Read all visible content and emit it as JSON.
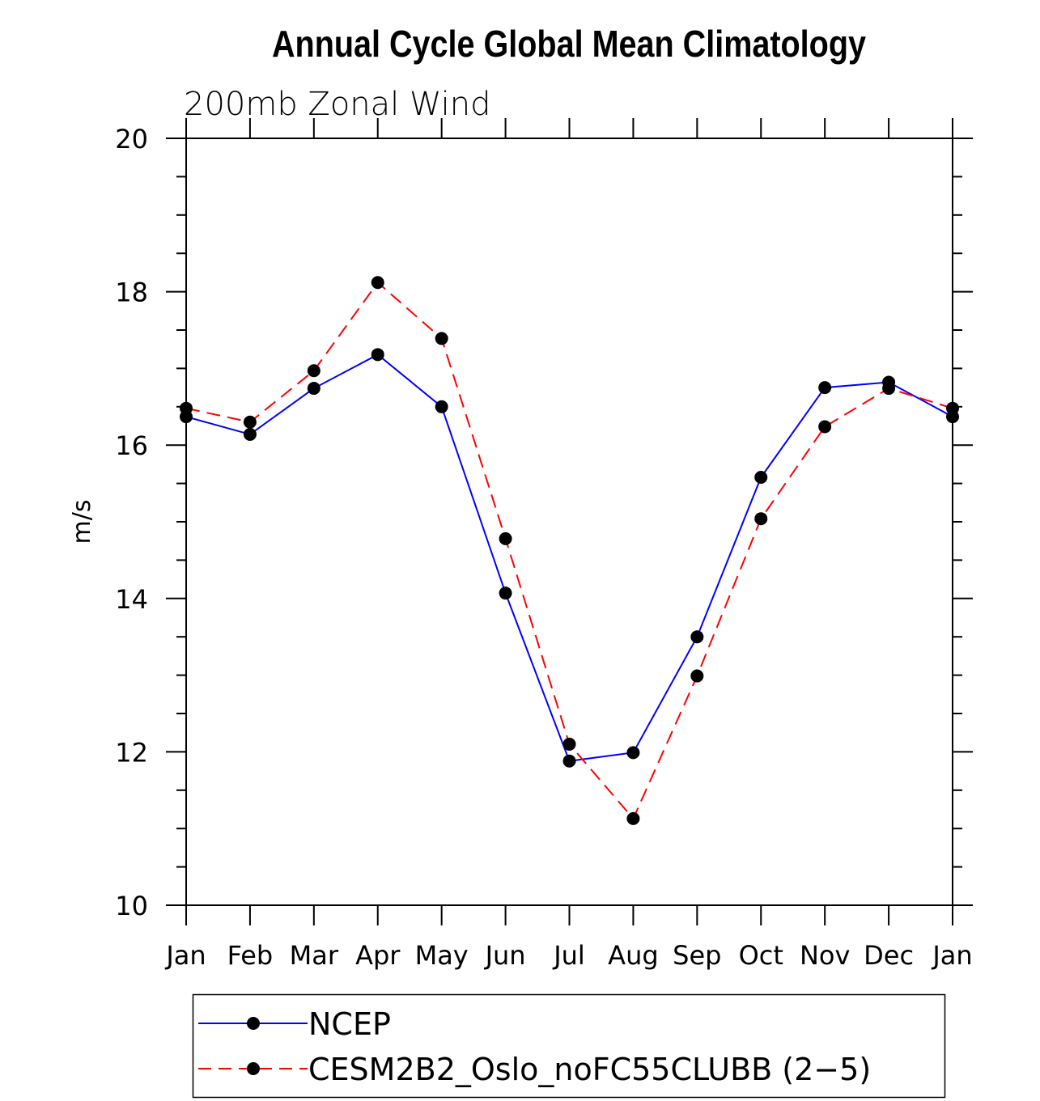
{
  "chart_data": {
    "type": "line",
    "title": "Annual Cycle Global Mean Climatology",
    "subtitle": "200mb Zonal Wind",
    "xlabel": "",
    "ylabel": "m/s",
    "categories": [
      "Jan",
      "Feb",
      "Mar",
      "Apr",
      "May",
      "Jun",
      "Jul",
      "Aug",
      "Sep",
      "Oct",
      "Nov",
      "Dec",
      "Jan"
    ],
    "ylim": [
      10,
      20
    ],
    "yticks": [
      10,
      12,
      14,
      16,
      18,
      20
    ],
    "yminor_step": 0.5,
    "grid": false,
    "legend_position": "bottom",
    "series": [
      {
        "name": "NCEP",
        "color": "#0000ff",
        "dash": "solid",
        "marker": "filled-circle",
        "values": [
          16.37,
          16.14,
          16.74,
          17.18,
          16.5,
          14.07,
          11.88,
          11.99,
          13.5,
          15.58,
          16.75,
          16.82,
          16.37
        ]
      },
      {
        "name": "CESM2B2_Oslo_noFC55CLUBB (2-5)",
        "color": "#ff0000",
        "dash": "dashed",
        "marker": "filled-circle",
        "values": [
          16.48,
          16.3,
          16.97,
          18.12,
          17.39,
          14.78,
          12.1,
          11.13,
          12.99,
          15.04,
          16.24,
          16.74,
          16.48
        ]
      }
    ]
  }
}
